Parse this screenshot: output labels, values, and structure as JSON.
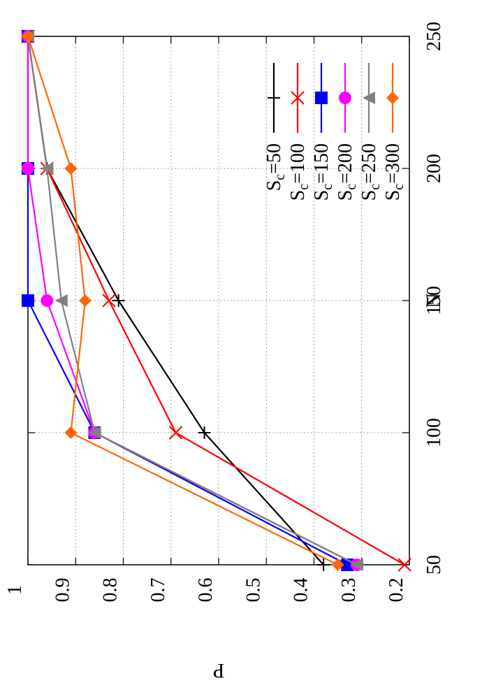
{
  "chart_data": {
    "type": "line",
    "xlabel": "N",
    "ylabel": "P",
    "x": [
      50,
      100,
      150,
      200,
      250
    ],
    "xlim": [
      50,
      250
    ],
    "ylim": [
      0.2,
      1.0
    ],
    "xticks": [
      50,
      100,
      150,
      200,
      250
    ],
    "yticks": [
      0.2,
      0.3,
      0.4,
      0.5,
      0.6,
      0.7,
      0.8,
      0.9,
      1.0
    ],
    "ytick_labels": [
      "0.2",
      "0.3",
      "0.4",
      "0.5",
      "0.6",
      "0.7",
      "0.8",
      "0.9",
      "1"
    ],
    "grid": true,
    "legend_position": "top-right",
    "orientation": "rotated-90",
    "series": [
      {
        "name": "Sc=50",
        "sub": "c",
        "name_pre": "S",
        "name_post": "=50",
        "color": "#000000",
        "marker": "plus",
        "values": [
          0.38,
          0.63,
          0.81,
          0.96,
          1.0
        ]
      },
      {
        "name": "Sc=100",
        "sub": "c",
        "name_pre": "S",
        "name_post": "=100",
        "color": "#ff0000",
        "marker": "cross",
        "values": [
          0.21,
          0.69,
          0.83,
          0.96,
          1.0
        ]
      },
      {
        "name": "Sc=150",
        "sub": "c",
        "name_pre": "S",
        "name_post": "=150",
        "color": "#0000ff",
        "marker": "square",
        "values": [
          0.33,
          0.86,
          1.0,
          1.0,
          1.0
        ]
      },
      {
        "name": "Sc=200",
        "sub": "c",
        "name_pre": "S",
        "name_post": "=200",
        "color": "#ff00ff",
        "marker": "circle",
        "values": [
          0.31,
          0.86,
          0.96,
          1.0,
          1.0
        ]
      },
      {
        "name": "Sc=250",
        "sub": "c",
        "name_pre": "S",
        "name_post": "=250",
        "color": "#808080",
        "marker": "triangle",
        "values": [
          0.31,
          0.86,
          0.93,
          0.96,
          1.0
        ]
      },
      {
        "name": "Sc=300",
        "sub": "c",
        "name_pre": "S",
        "name_post": "=300",
        "color": "#ff6600",
        "marker": "diamond",
        "values": [
          0.35,
          0.91,
          0.88,
          0.91,
          1.0
        ]
      }
    ]
  }
}
